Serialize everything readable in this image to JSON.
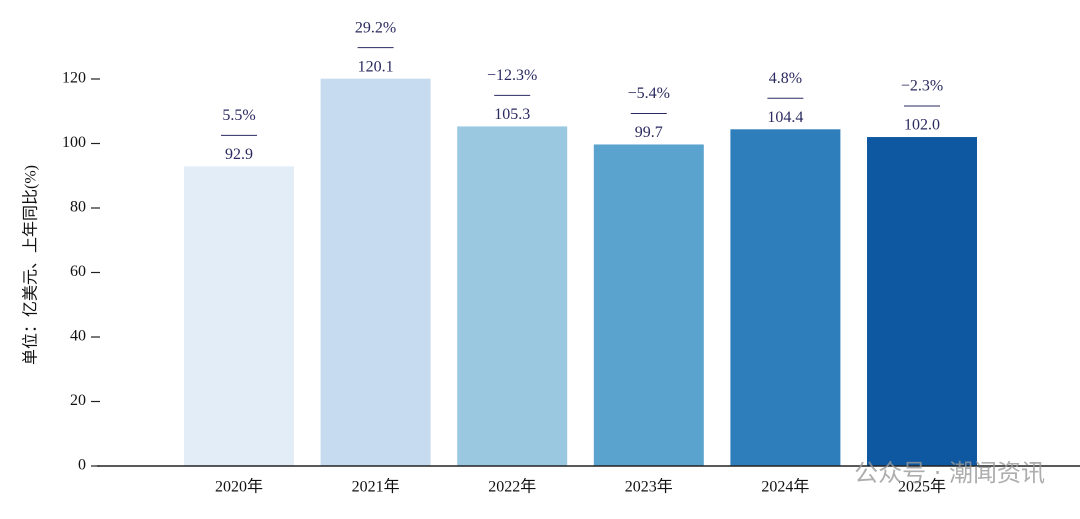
{
  "chart_data": {
    "type": "bar",
    "y_label": "单位：亿美元、上年同比(%)",
    "categories": [
      "2020年",
      "2021年",
      "2022年",
      "2023年",
      "2024年",
      "2025年"
    ],
    "values": [
      92.9,
      120.1,
      105.3,
      99.7,
      104.4,
      102.0
    ],
    "value_labels": [
      "92.9",
      "120.1",
      "105.3",
      "99.7",
      "104.4",
      "102.0"
    ],
    "growth_labels": [
      "5.5%",
      "29.2%",
      "−12.3%",
      "−5.4%",
      "4.8%",
      "−2.3%"
    ],
    "colors": [
      "#e3edf8",
      "#c6dbef",
      "#9ac8e1",
      "#5ba3cf",
      "#2f7ebc",
      "#0d58a1"
    ],
    "ylim": [
      0,
      120
    ],
    "yticks": [
      0,
      20,
      40,
      60,
      80,
      100,
      120
    ],
    "watermark": "公众号 · 潮闻资讯"
  }
}
